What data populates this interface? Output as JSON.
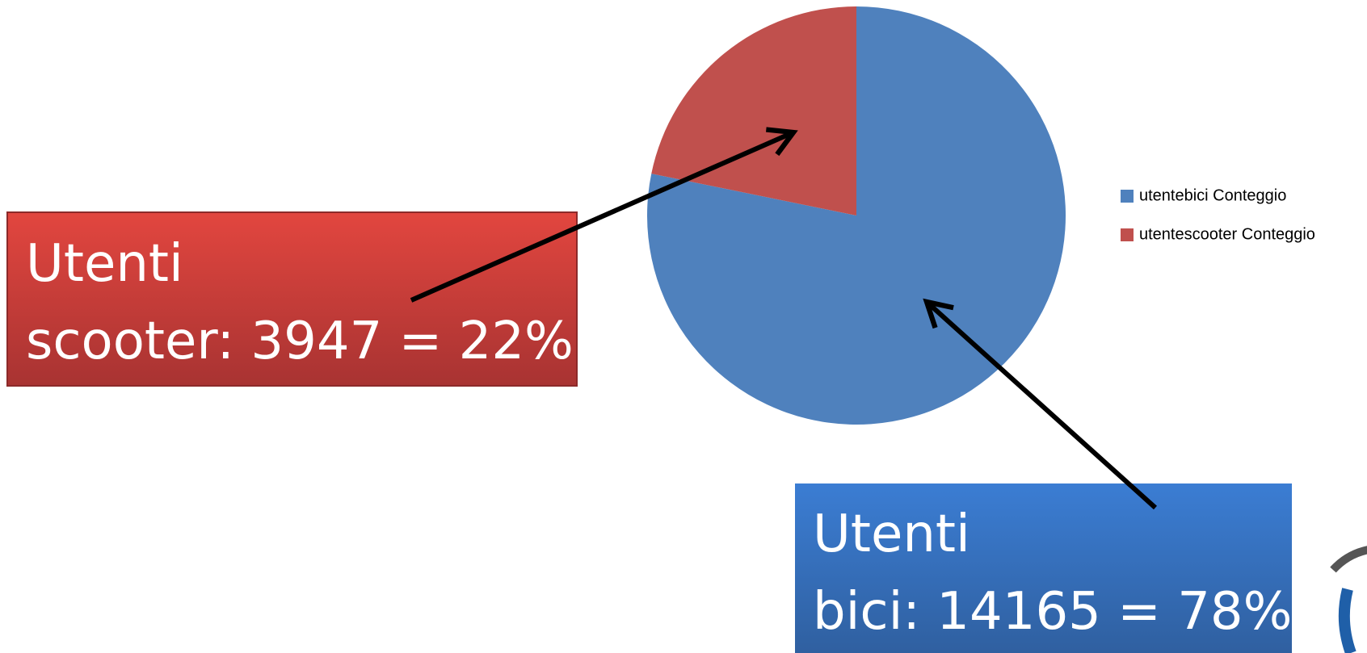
{
  "chart_data": {
    "type": "pie",
    "categories": [
      "utentebici Conteggio",
      "utentescooter Conteggio"
    ],
    "values": [
      14165,
      3947
    ],
    "colors": [
      "#4f81bd",
      "#c0504d"
    ],
    "annotations": [
      {
        "lines": [
          "Utenti",
          "scooter: 3947 = 22%"
        ]
      },
      {
        "lines": [
          "Utenti",
          "bici: 14165 = 78%"
        ]
      }
    ]
  }
}
